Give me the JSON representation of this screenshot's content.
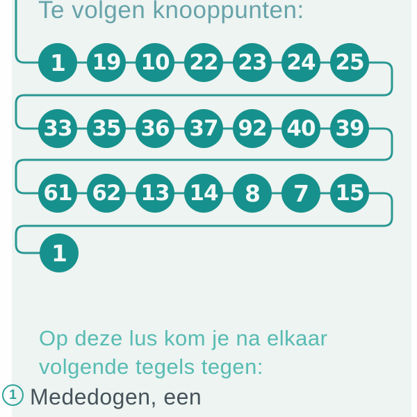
{
  "header": {
    "title": "Te volgen knooppunten:"
  },
  "route": {
    "rows": [
      [
        "1",
        "19",
        "10",
        "22",
        "23",
        "24",
        "25"
      ],
      [
        "33",
        "35",
        "36",
        "37",
        "92",
        "40",
        "39"
      ],
      [
        "61",
        "62",
        "13",
        "14",
        "8",
        "7",
        "15"
      ],
      [
        "1"
      ]
    ]
  },
  "footer": {
    "intro_lines": [
      "Op deze lus kom je na elkaar",
      "volgende tegels tegen:"
    ],
    "list": [
      {
        "marker": "1",
        "text": "Mededogen, een"
      }
    ]
  },
  "colors": {
    "node_fill": "#17918d",
    "line": "#2a9793",
    "title_text": "#68a3ab",
    "body_text": "#58bbb3",
    "dark_text": "#46535a",
    "marker": "#2fa29b",
    "page_bg": "#edf4f1",
    "margin_bg": "#fdfefd"
  }
}
